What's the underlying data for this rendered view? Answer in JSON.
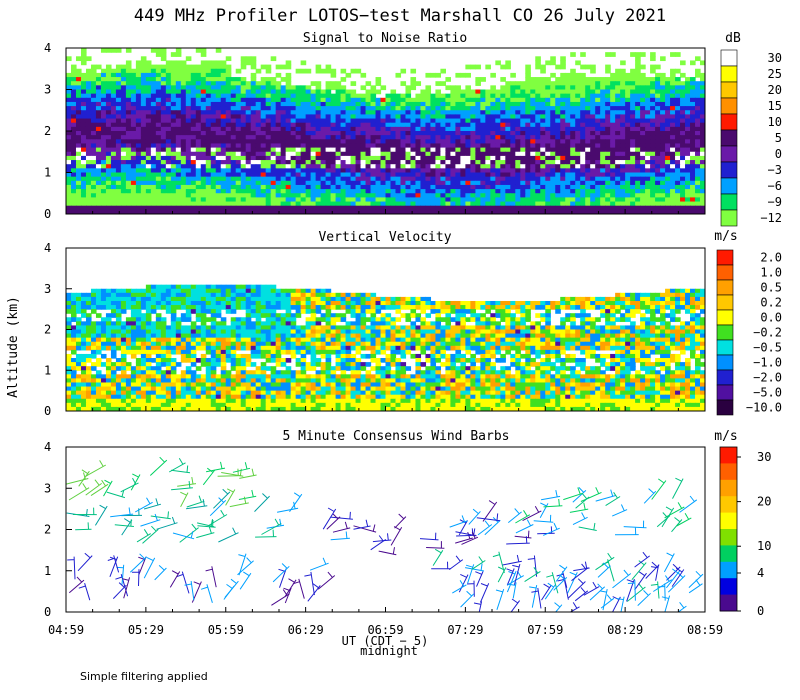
{
  "main_title": "449 MHz Profiler LOTOS−test Marshall CO 26 July 2021",
  "y_axis_label": "Altitude (km)",
  "x_axis_label": "UT (CDT − 5)",
  "midnight_label": "midnight",
  "footnote": "Simple filtering applied",
  "chart_data": [
    {
      "type": "heatmap",
      "title": "Signal to Noise Ratio",
      "units": "dB",
      "ylim": [
        0,
        4
      ],
      "yticks": [
        "0",
        "1",
        "2",
        "3",
        "4"
      ],
      "xticks": [
        "04:59",
        "05:29",
        "05:59",
        "06:29",
        "06:59",
        "07:29",
        "07:59",
        "08:29",
        "08:59"
      ],
      "colorbar_labels": [
        "30",
        "25",
        "20",
        "15",
        "10",
        "5",
        "0",
        "−3",
        "−6",
        "−9",
        "−12"
      ],
      "colorbar_colors": [
        "#ffffff",
        "#ffff00",
        "#ffc800",
        "#ff9000",
        "#ff1a00",
        "#4a0a6e",
        "#6a1aa8",
        "#2020d0",
        "#00a0ff",
        "#00e060",
        "#80ff40"
      ]
    },
    {
      "type": "heatmap",
      "title": "Vertical Velocity",
      "units": "m/s",
      "ylim": [
        0,
        4
      ],
      "yticks": [
        "0",
        "1",
        "2",
        "3",
        "4"
      ],
      "xticks": [
        "04:59",
        "05:29",
        "05:59",
        "06:29",
        "06:59",
        "07:29",
        "07:59",
        "08:29",
        "08:59"
      ],
      "colorbar_labels": [
        "2.0",
        "1.0",
        "0.5",
        "0.2",
        "0.0",
        "−0.2",
        "−0.5",
        "−1.0",
        "−2.0",
        "−5.0",
        "−10.0"
      ],
      "colorbar_colors": [
        "#ff1a00",
        "#ff6000",
        "#ffa000",
        "#ffc800",
        "#ffff00",
        "#40e020",
        "#00e0e0",
        "#0090ff",
        "#2020d0",
        "#5010a0",
        "#2a0040"
      ]
    },
    {
      "type": "scatter",
      "title": "5 Minute Consensus Wind Barbs",
      "units": "m/s",
      "ylim": [
        0,
        4
      ],
      "yticks": [
        "0",
        "1",
        "2",
        "3",
        "4"
      ],
      "xticks": [
        "04:59",
        "05:29",
        "05:59",
        "06:29",
        "06:59",
        "07:29",
        "07:59",
        "08:29",
        "08:59"
      ],
      "colorbar_ticks": [
        "30",
        "20",
        "10",
        "4",
        "0"
      ],
      "colorbar_colors": [
        "#ff1a00",
        "#ff6000",
        "#ffa000",
        "#ffc800",
        "#ffff00",
        "#80e000",
        "#00d060",
        "#00a0ff",
        "#0000e0",
        "#4a0a8e"
      ]
    }
  ]
}
